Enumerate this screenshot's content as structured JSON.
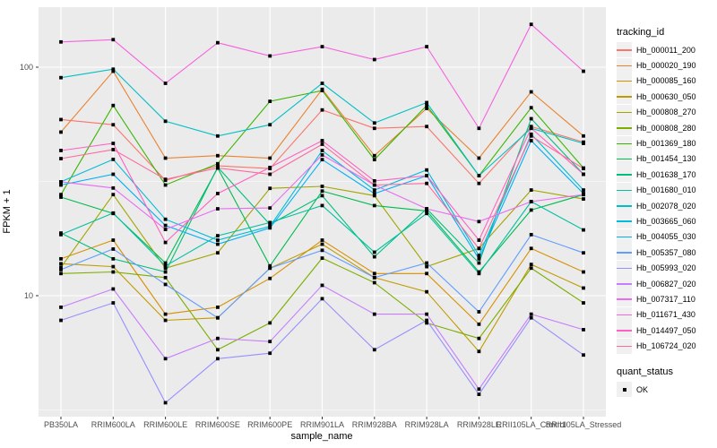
{
  "axes": {
    "x_title": "sample_name",
    "y_title": "FPKM + 1",
    "y_tick_labels": [
      "100",
      "10"
    ],
    "y_tick_values": [
      100,
      10
    ]
  },
  "legend": {
    "tracking_title": "tracking_id",
    "quant_title": "quant_status",
    "quant_items": [
      {
        "label": "OK",
        "shape": "filled-square",
        "color": "#000000"
      }
    ]
  },
  "chart_data": {
    "type": "line",
    "title": "",
    "xlabel": "sample_name",
    "ylabel": "FPKM + 1",
    "y_scale": "log10",
    "ylim": [
      3.0,
      183
    ],
    "y_major_ticks": [
      10,
      100
    ],
    "y_minor_ticks": [
      3.1623,
      31.623
    ],
    "grid": true,
    "legend_position": "right",
    "point_shape": "filled-square",
    "point_color": "#000000",
    "panel_bg": "#EBEBEB",
    "grid_color": "#FFFFFF",
    "axis_text_color": "#4D4D4D",
    "categories": [
      "PB350LA",
      "RRIM600LA",
      "RRIM600LE",
      "RRIM600SE",
      "RRIM600PE",
      "RRIM901LA",
      "RRIM928BA",
      "RRIM928LA",
      "RRIM928LE",
      "RRII105LA_Control",
      "RRII105LA_Stressed"
    ],
    "series": [
      {
        "name": "Hb_000011_200",
        "color": "#F8766D",
        "values": [
          59,
          56,
          32,
          37,
          36,
          65,
          54,
          55,
          31,
          55,
          47
        ]
      },
      {
        "name": "Hb_000020_190",
        "color": "#EA8331",
        "values": [
          52,
          96,
          40,
          41,
          40,
          80,
          41,
          66,
          40,
          78,
          50
        ]
      },
      {
        "name": "Hb_000085_160",
        "color": "#D89000",
        "values": [
          14.5,
          17.5,
          8.3,
          8.9,
          11.9,
          17.5,
          12.5,
          12.5,
          7.5,
          16.1,
          12.7
        ]
      },
      {
        "name": "Hb_000630_050",
        "color": "#C09B00",
        "values": [
          13.8,
          13.4,
          7.8,
          8.0,
          13.2,
          16.8,
          12.0,
          10.4,
          5.7,
          13.7,
          10.8
        ]
      },
      {
        "name": "Hb_000808_270",
        "color": "#A3A500",
        "values": [
          13.3,
          27.7,
          13.2,
          15.4,
          29.5,
          30.1,
          27.4,
          13.4,
          16.1,
          29.0,
          26.5
        ]
      },
      {
        "name": "Hb_000808_280",
        "color": "#7CAE00",
        "values": [
          12.5,
          12.7,
          12.0,
          5.8,
          7.6,
          14.6,
          11.4,
          7.6,
          6.5,
          13.2,
          9.3
        ]
      },
      {
        "name": "Hb_001369_180",
        "color": "#39B600",
        "values": [
          27.7,
          68,
          30.5,
          37.8,
          70.9,
          79,
          39.4,
          68,
          33.5,
          66.5,
          36.2
        ]
      },
      {
        "name": "Hb_001454_130",
        "color": "#00BB4E",
        "values": [
          27.0,
          22.9,
          13.9,
          36.2,
          13.5,
          28.7,
          24.8,
          23.5,
          12.7,
          23.7,
          27.7
        ]
      },
      {
        "name": "Hb_001638_170",
        "color": "#00BF7D",
        "values": [
          18.8,
          14.5,
          12.7,
          36.5,
          20.5,
          27.4,
          14.8,
          24.0,
          13.9,
          59.5,
          34.0
        ]
      },
      {
        "name": "Hb_001680_010",
        "color": "#00C1A3",
        "values": [
          18.5,
          23.0,
          13.5,
          18.3,
          20.9,
          24.8,
          15.5,
          22.9,
          12.5,
          25.8,
          19.4
        ]
      },
      {
        "name": "Hb_002078_020",
        "color": "#00BFC4",
        "values": [
          90,
          98,
          58,
          50,
          56,
          85,
          57,
          70,
          33.5,
          54,
          46.4
        ]
      },
      {
        "name": "Hb_003665_060",
        "color": "#00BBDA",
        "values": [
          31.5,
          39.5,
          21.6,
          17.5,
          20.1,
          43.2,
          29.0,
          35.5,
          15.0,
          50.9,
          29.0
        ]
      },
      {
        "name": "Hb_004055_030",
        "color": "#00B0F6",
        "values": [
          30.5,
          34.0,
          20.3,
          16.8,
          19.8,
          39.4,
          28.0,
          33.5,
          14.5,
          47.7,
          28.0
        ]
      },
      {
        "name": "Hb_005357_080",
        "color": "#619CFF",
        "values": [
          13.0,
          16.0,
          11.2,
          8.0,
          13.2,
          15.8,
          12.0,
          13.9,
          8.5,
          18.5,
          15.4
        ]
      },
      {
        "name": "Hb_005993_020",
        "color": "#9590FF",
        "values": [
          7.8,
          9.3,
          3.4,
          5.3,
          5.6,
          9.7,
          5.8,
          7.8,
          3.7,
          8.0,
          5.5
        ]
      },
      {
        "name": "Hb_006827_020",
        "color": "#C77CFF",
        "values": [
          8.9,
          10.7,
          5.3,
          6.5,
          6.3,
          11.1,
          8.3,
          8.3,
          3.9,
          8.3,
          7.1
        ]
      },
      {
        "name": "Hb_007317_110",
        "color": "#E76BF3",
        "values": [
          31.5,
          29.6,
          19.5,
          24.0,
          24.2,
          41.3,
          30.5,
          24.0,
          21.1,
          25.8,
          27.7
        ]
      },
      {
        "name": "Hb_011671_430",
        "color": "#F763E0",
        "values": [
          129,
          132,
          85,
          128,
          112,
          123,
          108,
          123,
          54,
          154,
          96
        ]
      },
      {
        "name": "Hb_014497_050",
        "color": "#FF61C3",
        "values": [
          43.2,
          46.4,
          17.1,
          28.0,
          36.4,
          47.7,
          31.8,
          33.5,
          17.5,
          54.1,
          34.0
        ]
      },
      {
        "name": "Hb_106724_020",
        "color": "#FF689E",
        "values": [
          39.8,
          43.6,
          32.3,
          36.2,
          34.0,
          46.0,
          30.5,
          31.0,
          16.1,
          50.0,
          36.0
        ]
      }
    ]
  }
}
